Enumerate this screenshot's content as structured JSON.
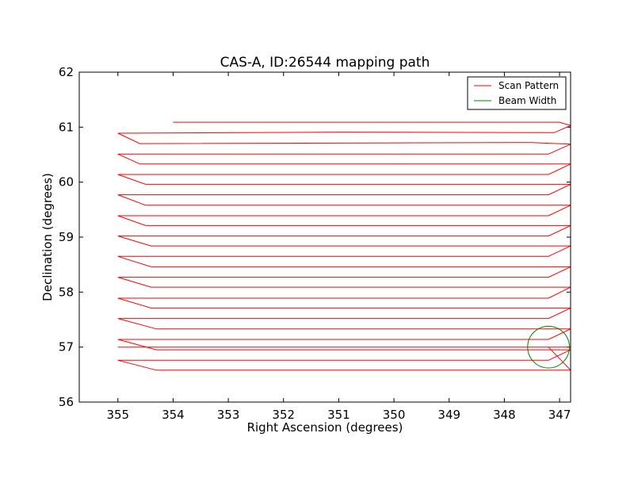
{
  "chart_data": {
    "type": "line",
    "title": "CAS-A, ID:26544 mapping path",
    "xlabel": "Right Ascension (degrees)",
    "ylabel": "Declination (degrees)",
    "xlim": [
      355.7,
      346.8
    ],
    "ylim": [
      56,
      62
    ],
    "x_ticks": [
      355,
      354,
      353,
      352,
      351,
      350,
      349,
      348,
      347
    ],
    "y_ticks": [
      56,
      57,
      58,
      59,
      60,
      61,
      62
    ],
    "grid": false,
    "legend_position": "top-right",
    "series": [
      {
        "name": "Scan Pattern",
        "color": "#ff0000",
        "x": [
          354.0,
          347.0,
          346.8,
          347.1,
          351.0,
          355.0,
          354.6,
          347.5,
          346.8,
          347.2,
          355.0,
          354.6,
          346.8,
          347.2,
          355.0,
          354.5,
          346.8,
          347.2,
          355.0,
          354.5,
          346.8,
          347.2,
          355.0,
          354.5,
          346.8,
          347.2,
          355.0,
          354.4,
          346.8,
          347.2,
          355.0,
          354.4,
          346.8,
          347.2,
          355.0,
          354.4,
          346.8,
          347.2,
          355.0,
          354.4,
          346.8,
          347.2,
          355.0,
          354.3,
          346.8,
          347.2,
          355.0,
          354.3,
          346.8,
          347.2,
          355.0,
          354.3,
          346.8,
          347.2,
          355.0,
          354.3,
          346.8
        ],
        "y": [
          61.09,
          61.09,
          61.03,
          60.9,
          60.91,
          60.89,
          60.7,
          60.72,
          60.69,
          60.51,
          60.51,
          60.33,
          60.33,
          60.14,
          60.14,
          59.96,
          59.96,
          59.77,
          59.77,
          59.58,
          59.58,
          59.39,
          59.39,
          59.21,
          59.21,
          59.02,
          59.02,
          58.84,
          58.84,
          58.65,
          58.65,
          58.46,
          58.46,
          58.27,
          58.27,
          58.09,
          58.09,
          57.89,
          57.89,
          57.71,
          57.71,
          57.52,
          57.52,
          57.33,
          57.33,
          57.14,
          57.14,
          56.95,
          56.95,
          56.76,
          56.76,
          56.58,
          56.58,
          57.0,
          57.0,
          57.0,
          57.0
        ]
      },
      {
        "name": "Beam Width",
        "color": "#008000",
        "shape": "circle",
        "center": [
          347.2,
          57.0
        ],
        "radius": 0.38
      }
    ]
  }
}
